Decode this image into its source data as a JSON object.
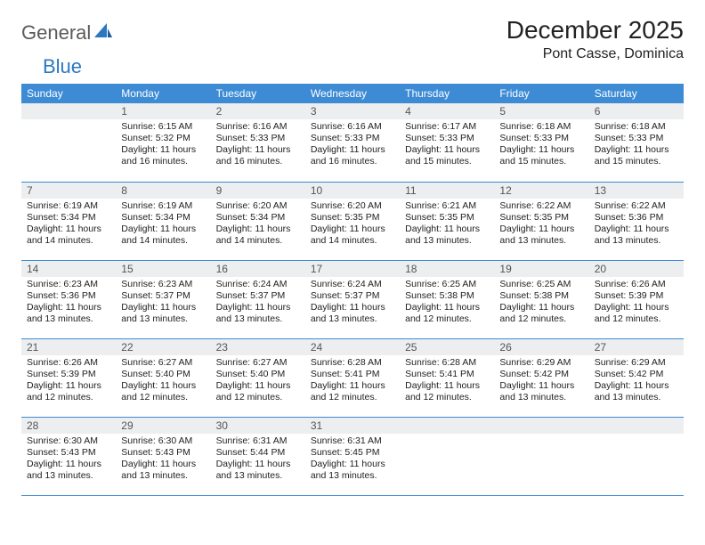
{
  "brand": {
    "part1": "General",
    "part2": "Blue"
  },
  "title": "December 2025",
  "location": "Pont Casse, Dominica",
  "colors": {
    "header_bg": "#3d8bd4",
    "header_text": "#ffffff",
    "daynum_bg": "#eceef0",
    "border": "#3d8bd4",
    "brand_gray": "#5a5a5a",
    "brand_blue": "#2b78c2"
  },
  "weekdays": [
    "Sunday",
    "Monday",
    "Tuesday",
    "Wednesday",
    "Thursday",
    "Friday",
    "Saturday"
  ],
  "weeks": [
    [
      {
        "day": "",
        "sunrise": "",
        "sunset": "",
        "daylight": ""
      },
      {
        "day": "1",
        "sunrise": "Sunrise: 6:15 AM",
        "sunset": "Sunset: 5:32 PM",
        "daylight": "Daylight: 11 hours and 16 minutes."
      },
      {
        "day": "2",
        "sunrise": "Sunrise: 6:16 AM",
        "sunset": "Sunset: 5:33 PM",
        "daylight": "Daylight: 11 hours and 16 minutes."
      },
      {
        "day": "3",
        "sunrise": "Sunrise: 6:16 AM",
        "sunset": "Sunset: 5:33 PM",
        "daylight": "Daylight: 11 hours and 16 minutes."
      },
      {
        "day": "4",
        "sunrise": "Sunrise: 6:17 AM",
        "sunset": "Sunset: 5:33 PM",
        "daylight": "Daylight: 11 hours and 15 minutes."
      },
      {
        "day": "5",
        "sunrise": "Sunrise: 6:18 AM",
        "sunset": "Sunset: 5:33 PM",
        "daylight": "Daylight: 11 hours and 15 minutes."
      },
      {
        "day": "6",
        "sunrise": "Sunrise: 6:18 AM",
        "sunset": "Sunset: 5:33 PM",
        "daylight": "Daylight: 11 hours and 15 minutes."
      }
    ],
    [
      {
        "day": "7",
        "sunrise": "Sunrise: 6:19 AM",
        "sunset": "Sunset: 5:34 PM",
        "daylight": "Daylight: 11 hours and 14 minutes."
      },
      {
        "day": "8",
        "sunrise": "Sunrise: 6:19 AM",
        "sunset": "Sunset: 5:34 PM",
        "daylight": "Daylight: 11 hours and 14 minutes."
      },
      {
        "day": "9",
        "sunrise": "Sunrise: 6:20 AM",
        "sunset": "Sunset: 5:34 PM",
        "daylight": "Daylight: 11 hours and 14 minutes."
      },
      {
        "day": "10",
        "sunrise": "Sunrise: 6:20 AM",
        "sunset": "Sunset: 5:35 PM",
        "daylight": "Daylight: 11 hours and 14 minutes."
      },
      {
        "day": "11",
        "sunrise": "Sunrise: 6:21 AM",
        "sunset": "Sunset: 5:35 PM",
        "daylight": "Daylight: 11 hours and 13 minutes."
      },
      {
        "day": "12",
        "sunrise": "Sunrise: 6:22 AM",
        "sunset": "Sunset: 5:35 PM",
        "daylight": "Daylight: 11 hours and 13 minutes."
      },
      {
        "day": "13",
        "sunrise": "Sunrise: 6:22 AM",
        "sunset": "Sunset: 5:36 PM",
        "daylight": "Daylight: 11 hours and 13 minutes."
      }
    ],
    [
      {
        "day": "14",
        "sunrise": "Sunrise: 6:23 AM",
        "sunset": "Sunset: 5:36 PM",
        "daylight": "Daylight: 11 hours and 13 minutes."
      },
      {
        "day": "15",
        "sunrise": "Sunrise: 6:23 AM",
        "sunset": "Sunset: 5:37 PM",
        "daylight": "Daylight: 11 hours and 13 minutes."
      },
      {
        "day": "16",
        "sunrise": "Sunrise: 6:24 AM",
        "sunset": "Sunset: 5:37 PM",
        "daylight": "Daylight: 11 hours and 13 minutes."
      },
      {
        "day": "17",
        "sunrise": "Sunrise: 6:24 AM",
        "sunset": "Sunset: 5:37 PM",
        "daylight": "Daylight: 11 hours and 13 minutes."
      },
      {
        "day": "18",
        "sunrise": "Sunrise: 6:25 AM",
        "sunset": "Sunset: 5:38 PM",
        "daylight": "Daylight: 11 hours and 12 minutes."
      },
      {
        "day": "19",
        "sunrise": "Sunrise: 6:25 AM",
        "sunset": "Sunset: 5:38 PM",
        "daylight": "Daylight: 11 hours and 12 minutes."
      },
      {
        "day": "20",
        "sunrise": "Sunrise: 6:26 AM",
        "sunset": "Sunset: 5:39 PM",
        "daylight": "Daylight: 11 hours and 12 minutes."
      }
    ],
    [
      {
        "day": "21",
        "sunrise": "Sunrise: 6:26 AM",
        "sunset": "Sunset: 5:39 PM",
        "daylight": "Daylight: 11 hours and 12 minutes."
      },
      {
        "day": "22",
        "sunrise": "Sunrise: 6:27 AM",
        "sunset": "Sunset: 5:40 PM",
        "daylight": "Daylight: 11 hours and 12 minutes."
      },
      {
        "day": "23",
        "sunrise": "Sunrise: 6:27 AM",
        "sunset": "Sunset: 5:40 PM",
        "daylight": "Daylight: 11 hours and 12 minutes."
      },
      {
        "day": "24",
        "sunrise": "Sunrise: 6:28 AM",
        "sunset": "Sunset: 5:41 PM",
        "daylight": "Daylight: 11 hours and 12 minutes."
      },
      {
        "day": "25",
        "sunrise": "Sunrise: 6:28 AM",
        "sunset": "Sunset: 5:41 PM",
        "daylight": "Daylight: 11 hours and 12 minutes."
      },
      {
        "day": "26",
        "sunrise": "Sunrise: 6:29 AM",
        "sunset": "Sunset: 5:42 PM",
        "daylight": "Daylight: 11 hours and 13 minutes."
      },
      {
        "day": "27",
        "sunrise": "Sunrise: 6:29 AM",
        "sunset": "Sunset: 5:42 PM",
        "daylight": "Daylight: 11 hours and 13 minutes."
      }
    ],
    [
      {
        "day": "28",
        "sunrise": "Sunrise: 6:30 AM",
        "sunset": "Sunset: 5:43 PM",
        "daylight": "Daylight: 11 hours and 13 minutes."
      },
      {
        "day": "29",
        "sunrise": "Sunrise: 6:30 AM",
        "sunset": "Sunset: 5:43 PM",
        "daylight": "Daylight: 11 hours and 13 minutes."
      },
      {
        "day": "30",
        "sunrise": "Sunrise: 6:31 AM",
        "sunset": "Sunset: 5:44 PM",
        "daylight": "Daylight: 11 hours and 13 minutes."
      },
      {
        "day": "31",
        "sunrise": "Sunrise: 6:31 AM",
        "sunset": "Sunset: 5:45 PM",
        "daylight": "Daylight: 11 hours and 13 minutes."
      },
      {
        "day": "",
        "sunrise": "",
        "sunset": "",
        "daylight": ""
      },
      {
        "day": "",
        "sunrise": "",
        "sunset": "",
        "daylight": ""
      },
      {
        "day": "",
        "sunrise": "",
        "sunset": "",
        "daylight": ""
      }
    ]
  ]
}
